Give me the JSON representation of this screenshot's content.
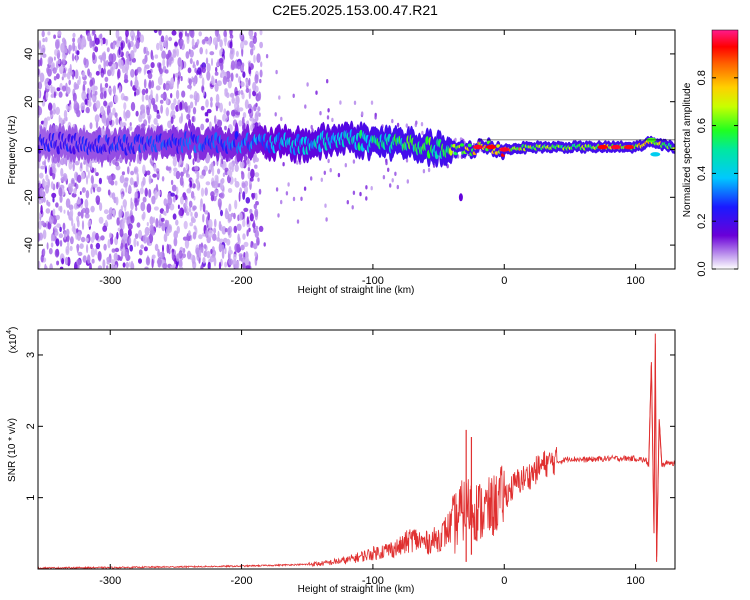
{
  "title": "C2E5.2025.153.00.47.R21",
  "colors": {
    "snr_line": "#e03030",
    "spectrogram_low": "#6a00d8",
    "spectrogram_mid": "#00e8ff",
    "spectrogram_high": "#ff0000"
  },
  "chart_data": [
    {
      "type": "heatmap",
      "title": "",
      "xlabel": "Height of straight line (km)",
      "ylabel": "Frequency (Hz)",
      "xlim": [
        -355,
        130
      ],
      "ylim": [
        -50,
        50
      ],
      "x_ticks": [
        -300,
        -200,
        -100,
        0,
        100
      ],
      "y_ticks": [
        -40,
        -20,
        0,
        20,
        40
      ],
      "colorbar": {
        "label": "Normalized spectral amplitude",
        "range": [
          0,
          1
        ],
        "ticks": [
          "0.0",
          "0.2",
          "0.4",
          "0.6",
          "0.8"
        ]
      },
      "ridge": {
        "description_x": [
          -355,
          -300,
          -250,
          -200,
          -150,
          -120,
          -100,
          -80,
          -60,
          -40,
          -20,
          0,
          20,
          60,
          100,
          110,
          130
        ],
        "center_freq": [
          3,
          2,
          3,
          3,
          2,
          5,
          3,
          3,
          1,
          -1,
          1,
          0,
          1,
          1,
          1,
          3,
          1
        ],
        "amplitude": [
          0.25,
          0.28,
          0.32,
          0.35,
          0.45,
          0.5,
          0.55,
          0.6,
          0.6,
          0.65,
          0.8,
          0.9,
          0.7,
          0.7,
          0.75,
          0.85,
          0.65
        ]
      },
      "noise_edge_x": -195,
      "grid": false
    },
    {
      "type": "line",
      "title": "",
      "xlabel": "Height of straight line (km)",
      "ylabel": "SNR (10 * v/v)",
      "scale_note": "(x10",
      "scale_exp": "4",
      "xlim": [
        -355,
        130
      ],
      "ylim": [
        0,
        3.35
      ],
      "x_ticks": [
        -300,
        -200,
        -100,
        0,
        100
      ],
      "y_ticks": [
        1,
        2,
        3
      ],
      "series": [
        {
          "x": [
            -355,
            -300,
            -250,
            -200,
            -180,
            -160,
            -140,
            -120,
            -100,
            -80,
            -70,
            -60,
            -50,
            -40,
            -35,
            -30,
            -25,
            -20,
            -10,
            0,
            10,
            20,
            30,
            40,
            50,
            60,
            80,
            100,
            108,
            110,
            112,
            114,
            115,
            116,
            118,
            120,
            125,
            130
          ],
          "values": [
            0.005,
            0.01,
            0.02,
            0.03,
            0.04,
            0.05,
            0.06,
            0.1,
            0.18,
            0.25,
            0.35,
            0.3,
            0.35,
            0.5,
            0.7,
            0.8,
            0.85,
            0.75,
            0.8,
            1.0,
            1.2,
            1.3,
            1.45,
            1.5,
            1.55,
            1.53,
            1.55,
            1.55,
            1.52,
            1.45,
            2.9,
            0.5,
            3.3,
            0.1,
            2.1,
            1.45,
            1.5,
            1.48
          ]
        }
      ],
      "spikes": [
        {
          "x": -29,
          "values": [
            1.95,
            0.1
          ]
        },
        {
          "x": -25,
          "values": [
            1.85,
            0.2
          ]
        }
      ],
      "grid": false
    }
  ]
}
